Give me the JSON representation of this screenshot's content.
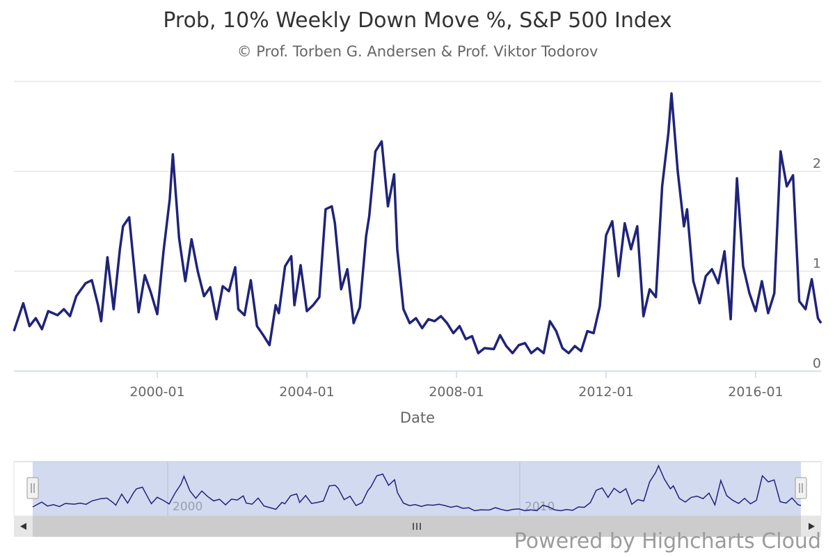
{
  "chart_data": {
    "type": "line",
    "title": "Prob, 10% Weekly Down Move %, S&P 500 Index",
    "subtitle": "© Prof. Torben G. Andersen & Prof. Viktor Todorov",
    "xlabel": "Date",
    "ylabel": "",
    "x_ticks": [
      "2000-01",
      "2004-01",
      "2008-01",
      "2012-01",
      "2016-01"
    ],
    "y_ticks": [
      "0",
      "1",
      "2"
    ],
    "ylim": [
      0,
      2.9
    ],
    "xlim": [
      "1996-03",
      "2017-10"
    ],
    "grid": true,
    "legend": "none",
    "series": [
      {
        "color": "#1f237a",
        "points": [
          [
            "1996-03",
            0.4
          ],
          [
            "1996-06",
            0.68
          ],
          [
            "1996-08",
            0.45
          ],
          [
            "1996-10",
            0.53
          ],
          [
            "1996-12",
            0.42
          ],
          [
            "1997-02",
            0.6
          ],
          [
            "1997-05",
            0.56
          ],
          [
            "1997-07",
            0.62
          ],
          [
            "1997-09",
            0.55
          ],
          [
            "1997-11",
            0.75
          ],
          [
            "1998-02",
            0.88
          ],
          [
            "1998-04",
            0.91
          ],
          [
            "1998-06",
            0.66
          ],
          [
            "1998-07",
            0.5
          ],
          [
            "1998-09",
            1.14
          ],
          [
            "1998-11",
            0.62
          ],
          [
            "1999-01",
            1.22
          ],
          [
            "1999-02",
            1.45
          ],
          [
            "1999-04",
            1.54
          ],
          [
            "1999-06",
            0.9
          ],
          [
            "1999-07",
            0.59
          ],
          [
            "1999-09",
            0.96
          ],
          [
            "1999-11",
            0.78
          ],
          [
            "2000-01",
            0.57
          ],
          [
            "2000-03",
            1.2
          ],
          [
            "2000-05",
            1.72
          ],
          [
            "2000-06",
            2.17
          ],
          [
            "2000-08",
            1.33
          ],
          [
            "2000-10",
            0.9
          ],
          [
            "2000-12",
            1.32
          ],
          [
            "2001-02",
            1.0
          ],
          [
            "2001-04",
            0.75
          ],
          [
            "2001-06",
            0.84
          ],
          [
            "2001-08",
            0.52
          ],
          [
            "2001-10",
            0.85
          ],
          [
            "2001-12",
            0.8
          ],
          [
            "2002-02",
            1.04
          ],
          [
            "2002-03",
            0.62
          ],
          [
            "2002-05",
            0.56
          ],
          [
            "2002-07",
            0.91
          ],
          [
            "2002-09",
            0.45
          ],
          [
            "2002-11",
            0.36
          ],
          [
            "2003-01",
            0.26
          ],
          [
            "2003-03",
            0.66
          ],
          [
            "2003-04",
            0.58
          ],
          [
            "2003-06",
            1.05
          ],
          [
            "2003-08",
            1.15
          ],
          [
            "2003-09",
            0.66
          ],
          [
            "2003-11",
            1.06
          ],
          [
            "2004-01",
            0.6
          ],
          [
            "2004-03",
            0.66
          ],
          [
            "2004-05",
            0.74
          ],
          [
            "2004-07",
            1.62
          ],
          [
            "2004-09",
            1.65
          ],
          [
            "2004-10",
            1.48
          ],
          [
            "2004-12",
            0.82
          ],
          [
            "2005-02",
            1.02
          ],
          [
            "2005-04",
            0.48
          ],
          [
            "2005-06",
            0.64
          ],
          [
            "2005-08",
            1.35
          ],
          [
            "2005-09",
            1.55
          ],
          [
            "2005-11",
            2.2
          ],
          [
            "2006-01",
            2.3
          ],
          [
            "2006-03",
            1.65
          ],
          [
            "2006-05",
            1.97
          ],
          [
            "2006-06",
            1.22
          ],
          [
            "2006-08",
            0.62
          ],
          [
            "2006-10",
            0.48
          ],
          [
            "2006-12",
            0.53
          ],
          [
            "2007-02",
            0.43
          ],
          [
            "2007-04",
            0.52
          ],
          [
            "2007-06",
            0.5
          ],
          [
            "2007-08",
            0.55
          ],
          [
            "2007-10",
            0.48
          ],
          [
            "2007-12",
            0.38
          ],
          [
            "2008-02",
            0.45
          ],
          [
            "2008-04",
            0.32
          ],
          [
            "2008-06",
            0.35
          ],
          [
            "2008-08",
            0.18
          ],
          [
            "2008-10",
            0.23
          ],
          [
            "2009-01",
            0.22
          ],
          [
            "2009-03",
            0.36
          ],
          [
            "2009-05",
            0.25
          ],
          [
            "2009-07",
            0.18
          ],
          [
            "2009-09",
            0.26
          ],
          [
            "2009-11",
            0.28
          ],
          [
            "2010-01",
            0.18
          ],
          [
            "2010-03",
            0.23
          ],
          [
            "2010-05",
            0.18
          ],
          [
            "2010-07",
            0.5
          ],
          [
            "2010-09",
            0.4
          ],
          [
            "2010-11",
            0.23
          ],
          [
            "2011-01",
            0.18
          ],
          [
            "2011-03",
            0.25
          ],
          [
            "2011-05",
            0.2
          ],
          [
            "2011-07",
            0.4
          ],
          [
            "2011-09",
            0.38
          ],
          [
            "2011-11",
            0.65
          ],
          [
            "2012-01",
            1.36
          ],
          [
            "2012-03",
            1.5
          ],
          [
            "2012-05",
            0.95
          ],
          [
            "2012-07",
            1.48
          ],
          [
            "2012-09",
            1.22
          ],
          [
            "2012-11",
            1.45
          ],
          [
            "2013-01",
            0.55
          ],
          [
            "2013-03",
            0.82
          ],
          [
            "2013-05",
            0.74
          ],
          [
            "2013-07",
            1.85
          ],
          [
            "2013-09",
            2.38
          ],
          [
            "2013-10",
            2.78
          ],
          [
            "2013-12",
            2.0
          ],
          [
            "2014-02",
            1.45
          ],
          [
            "2014-03",
            1.62
          ],
          [
            "2014-05",
            0.9
          ],
          [
            "2014-07",
            0.68
          ],
          [
            "2014-09",
            0.95
          ],
          [
            "2014-11",
            1.02
          ],
          [
            "2015-01",
            0.88
          ],
          [
            "2015-03",
            1.2
          ],
          [
            "2015-05",
            0.52
          ],
          [
            "2015-07",
            1.93
          ],
          [
            "2015-09",
            1.05
          ],
          [
            "2015-11",
            0.78
          ],
          [
            "2016-01",
            0.6
          ],
          [
            "2016-03",
            0.9
          ],
          [
            "2016-05",
            0.58
          ],
          [
            "2016-07",
            0.78
          ],
          [
            "2016-09",
            2.2
          ],
          [
            "2016-11",
            1.85
          ],
          [
            "2017-01",
            1.96
          ],
          [
            "2017-03",
            0.7
          ],
          [
            "2017-05",
            0.62
          ],
          [
            "2017-07",
            0.92
          ],
          [
            "2017-09",
            0.53
          ],
          [
            "2017-10",
            0.48
          ]
        ]
      }
    ],
    "navigator": {
      "labels": [
        "2000",
        "2010"
      ],
      "selected_range": [
        "1996-03",
        "2017-10"
      ]
    }
  },
  "credits": "Powered by Highcharts Cloud"
}
